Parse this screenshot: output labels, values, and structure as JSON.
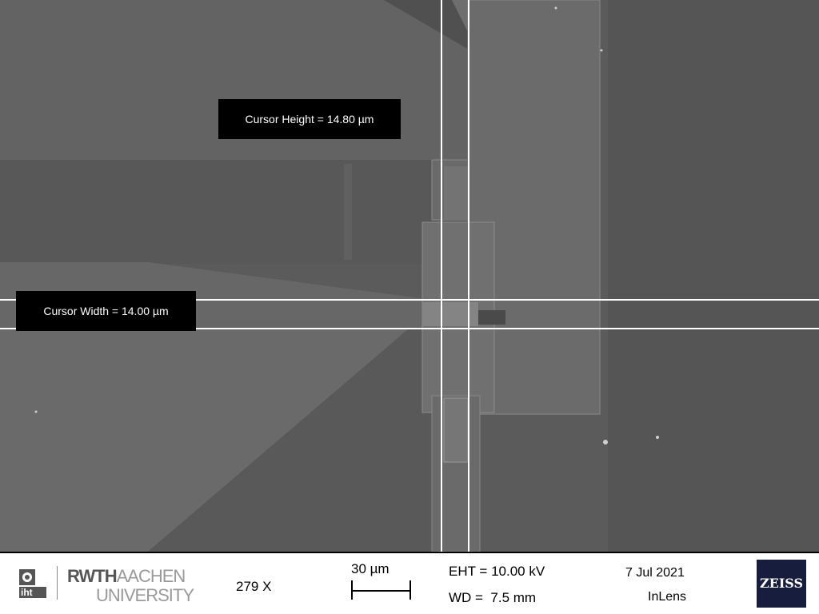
{
  "cursors": {
    "height_label": "Cursor Height = 14.80 µm",
    "width_label": "Cursor Width = 14.00 µm",
    "line_color": "#ffffff"
  },
  "info_bar": {
    "institution": {
      "icon": "iht-logo-icon",
      "icon_text": "iht",
      "university_line1_bold": "RWTH",
      "university_line1_light": "AACHEN",
      "university_line2": "UNIVERSITY"
    },
    "magnification": "279 X",
    "scale_bar_label": "30 µm",
    "eht": "EHT = 10.00 kV",
    "wd": "WD =  7.5 mm",
    "date": "7 Jul 2021",
    "detector": "InLens",
    "manufacturer_logo": "ZEISS"
  },
  "colors": {
    "background": "#5a5a5a",
    "label_bg": "#000000",
    "zeiss_blue": "#161d3d"
  }
}
